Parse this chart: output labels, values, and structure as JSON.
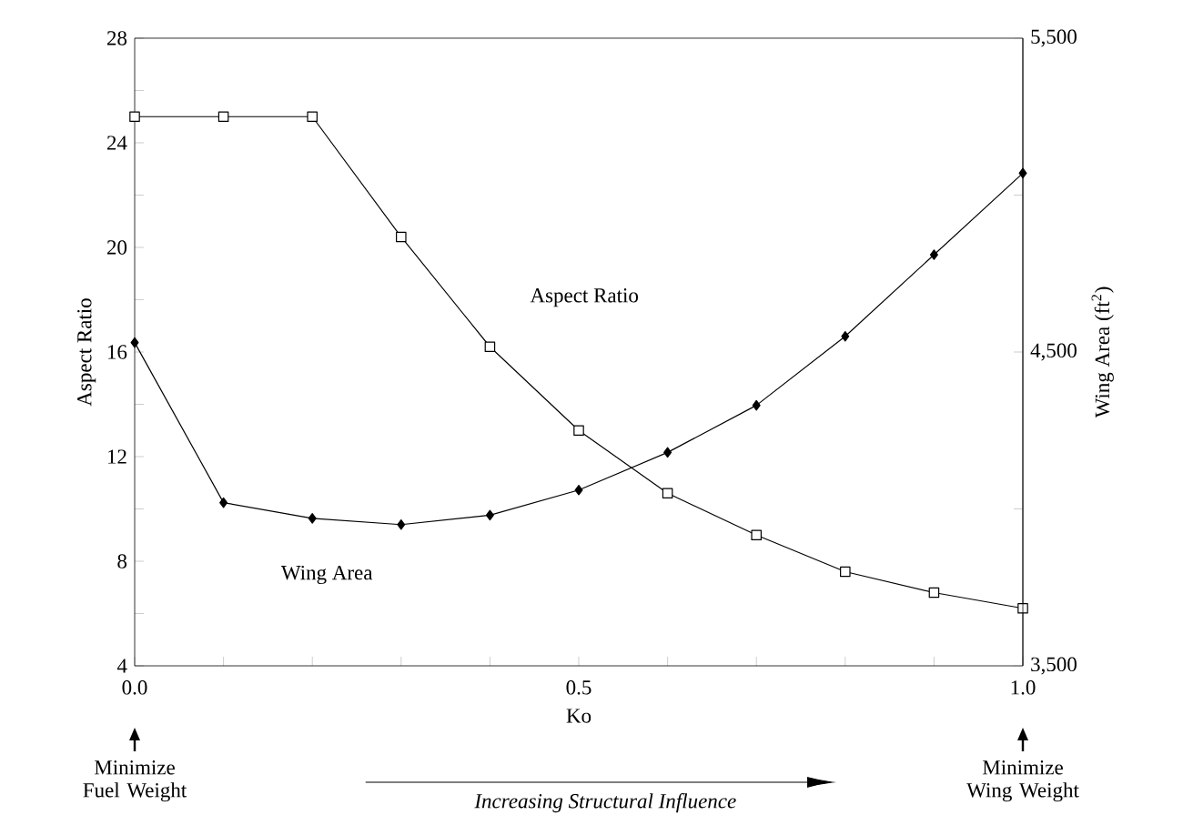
{
  "chart_data": {
    "type": "line",
    "xlabel": "Ko",
    "ylabel": "Aspect Ratio",
    "y2label": "Wing Area (ft$^{2}$)",
    "x": [
      0,
      0.1,
      0.2,
      0.3,
      0.4,
      0.5,
      0.6,
      0.7,
      0.8,
      0.9,
      1.0
    ],
    "series": [
      {
        "name": "Aspect Ratio",
        "color": "#000000",
        "marker": "square",
        "values": [
          25,
          25,
          25,
          20.4,
          16.2,
          13.0,
          10.6,
          9.0,
          7.6,
          6.8,
          6.2
        ]
      },
      {
        "name": "Wing Area",
        "color": "#000000",
        "marker": "diamond",
        "axis": "y2",
        "values": [
          4530,
          4020,
          3970,
          3950,
          3980,
          4060,
          4180,
          4330,
          4550,
          4810,
          5070
        ]
      }
    ],
    "xlim": [
      0,
      1
    ],
    "xticks": [
      {
        "value": 0,
        "label": "0.0"
      },
      {
        "value": 0.1,
        "label": null
      },
      {
        "value": 0.2,
        "label": null
      },
      {
        "value": 0.3,
        "label": null
      },
      {
        "value": 0.4,
        "label": null
      },
      {
        "value": 0.5,
        "label": "0.5"
      },
      {
        "value": 0.6,
        "label": null
      },
      {
        "value": 0.7,
        "label": null
      },
      {
        "value": 0.8,
        "label": null
      },
      {
        "value": 0.9,
        "label": null
      },
      {
        "value": 1.0,
        "label": "1.0"
      }
    ],
    "ylim": [
      4,
      28
    ],
    "yticks": [
      4,
      {
        "value": 6,
        "label": null
      },
      8,
      {
        "value": 10,
        "label": null
      },
      12,
      {
        "value": 14,
        "label": null
      },
      16,
      {
        "value": 18,
        "label": null
      },
      20,
      {
        "value": 22,
        "label": null
      },
      24,
      {
        "value": 26,
        "label": null
      },
      28
    ],
    "y2lim": [
      3500,
      5500
    ],
    "y2ticks": [
      {
        "value": 3500,
        "label": "3,500"
      },
      {
        "value": 4000,
        "label": null
      },
      {
        "value": 4500,
        "label": "4,500"
      },
      {
        "value": 5000,
        "label": null
      },
      {
        "value": 5500,
        "label": "5,500"
      }
    ],
    "line_style": "solid",
    "grid": false,
    "annotations": [
      "Minimize Fuel Weight",
      "Minimize Wing Weight",
      "Increasing Structural Influence"
    ]
  }
}
